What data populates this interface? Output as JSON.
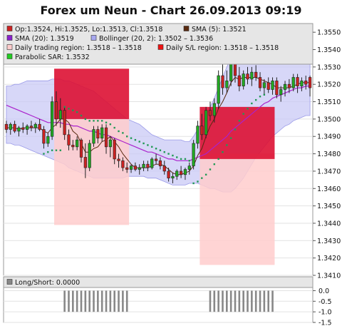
{
  "chart_data": [
    {
      "type": "candlestick",
      "title": "Forex um Neun - Chart 26.09.2013 09:19",
      "colors": {
        "up": "#22aa22",
        "down": "#cc2222",
        "sma5": "#5a2a10",
        "sma20": "#aa22cc",
        "bollinger_fill": "#c9c9f5",
        "bollinger_line": "#9a9ae8",
        "trading_region": "#ffcccc",
        "sl_region": "#dd1133",
        "parabolic_sar": "#229955",
        "plot_bg": "#ffffff",
        "legend_bg": "#e6e6e6"
      },
      "legend": [
        {
          "label": "Op:1.3524, Hi:1.3525, Lo:1.3513, Cl:1.3518",
          "color": "#cc2222"
        },
        {
          "label": "SMA (5): 1.3521",
          "color": "#5a2a10"
        },
        {
          "label": "SMA (20): 1.3519",
          "color": "#8a22cc"
        },
        {
          "label": "Bollinger (20, 2): 1.3502 – 1.3536",
          "color": "#a8a8f0"
        },
        {
          "label": "Daily trading region: 1.3518 – 1.3518",
          "color": "#ffcccc"
        },
        {
          "label": "Daily S/L region: 1.3518 – 1.3518",
          "color": "#ee1111"
        },
        {
          "label": "Parabolic SAR: 1.3532",
          "color": "#22cc22"
        }
      ],
      "y_ticks": [
        "1.3550",
        "1.3540",
        "1.3530",
        "1.3520",
        "1.3510",
        "1.3500",
        "1.3490",
        "1.3480",
        "1.3470",
        "1.3460",
        "1.3450",
        "1.3440",
        "1.3430",
        "1.3420",
        "1.3410"
      ],
      "ylim": [
        1.341,
        1.3555
      ],
      "n_bars": 74,
      "candles_ohlc": [
        [
          1.3497,
          1.3499,
          1.3492,
          1.3494
        ],
        [
          1.3494,
          1.3498,
          1.3491,
          1.3497
        ],
        [
          1.3497,
          1.3499,
          1.3492,
          1.3493
        ],
        [
          1.3493,
          1.3496,
          1.349,
          1.3495
        ],
        [
          1.3495,
          1.3498,
          1.3492,
          1.3494
        ],
        [
          1.3494,
          1.3497,
          1.3491,
          1.3496
        ],
        [
          1.3496,
          1.3499,
          1.3493,
          1.3495
        ],
        [
          1.3495,
          1.3498,
          1.3492,
          1.3497
        ],
        [
          1.3497,
          1.35,
          1.3493,
          1.3494
        ],
        [
          1.3494,
          1.3496,
          1.3483,
          1.3486
        ],
        [
          1.3486,
          1.3492,
          1.3484,
          1.349
        ],
        [
          1.349,
          1.3513,
          1.3488,
          1.351
        ],
        [
          1.351,
          1.3516,
          1.3496,
          1.35
        ],
        [
          1.35,
          1.3512,
          1.3495,
          1.3505
        ],
        [
          1.3505,
          1.3507,
          1.3488,
          1.3491
        ],
        [
          1.3491,
          1.3494,
          1.3482,
          1.3485
        ],
        [
          1.3485,
          1.3488,
          1.3482,
          1.3484
        ],
        [
          1.3484,
          1.349,
          1.3482,
          1.3488
        ],
        [
          1.3488,
          1.3489,
          1.3475,
          1.3478
        ],
        [
          1.3478,
          1.3486,
          1.3466,
          1.3472
        ],
        [
          1.3472,
          1.3488,
          1.347,
          1.3486
        ],
        [
          1.3486,
          1.3496,
          1.3484,
          1.3494
        ],
        [
          1.3494,
          1.3496,
          1.3486,
          1.3489
        ],
        [
          1.3489,
          1.3497,
          1.3487,
          1.3495
        ],
        [
          1.3495,
          1.3497,
          1.348,
          1.3484
        ],
        [
          1.3484,
          1.349,
          1.3478,
          1.3488
        ],
        [
          1.3488,
          1.3489,
          1.3474,
          1.3477
        ],
        [
          1.3477,
          1.348,
          1.3472,
          1.3476
        ],
        [
          1.3476,
          1.3478,
          1.347,
          1.3472
        ],
        [
          1.3472,
          1.3475,
          1.3469,
          1.3471
        ],
        [
          1.3471,
          1.3474,
          1.3469,
          1.3473
        ],
        [
          1.3473,
          1.3475,
          1.347,
          1.3471
        ],
        [
          1.3471,
          1.3474,
          1.3468,
          1.3472
        ],
        [
          1.3472,
          1.3476,
          1.347,
          1.3474
        ],
        [
          1.3474,
          1.3476,
          1.347,
          1.3472
        ],
        [
          1.3472,
          1.3478,
          1.3471,
          1.3477
        ],
        [
          1.3477,
          1.348,
          1.3474,
          1.3476
        ],
        [
          1.3476,
          1.3478,
          1.3471,
          1.3473
        ],
        [
          1.3473,
          1.3476,
          1.3468,
          1.347
        ],
        [
          1.347,
          1.3472,
          1.3464,
          1.3466
        ],
        [
          1.3466,
          1.3469,
          1.3463,
          1.3467
        ],
        [
          1.3467,
          1.3471,
          1.3465,
          1.347
        ],
        [
          1.347,
          1.3473,
          1.3466,
          1.3468
        ],
        [
          1.3468,
          1.3472,
          1.3465,
          1.3471
        ],
        [
          1.3471,
          1.3475,
          1.3468,
          1.3473
        ],
        [
          1.3473,
          1.3488,
          1.3471,
          1.3486
        ],
        [
          1.3486,
          1.3499,
          1.3483,
          1.3496
        ],
        [
          1.3496,
          1.3503,
          1.3488,
          1.3491
        ],
        [
          1.3491,
          1.3507,
          1.3489,
          1.3505
        ],
        [
          1.3505,
          1.351,
          1.3499,
          1.3502
        ],
        [
          1.3502,
          1.3512,
          1.3498,
          1.3509
        ],
        [
          1.3509,
          1.3528,
          1.3506,
          1.3525
        ],
        [
          1.3525,
          1.3532,
          1.3514,
          1.3518
        ],
        [
          1.3518,
          1.3528,
          1.3515,
          1.3522
        ],
        [
          1.3522,
          1.3537,
          1.3519,
          1.3533
        ],
        [
          1.3533,
          1.3535,
          1.3521,
          1.3525
        ],
        [
          1.3525,
          1.353,
          1.3516,
          1.3519
        ],
        [
          1.3519,
          1.3528,
          1.3517,
          1.3526
        ],
        [
          1.3526,
          1.353,
          1.352,
          1.3523
        ],
        [
          1.3523,
          1.353,
          1.3519,
          1.3527
        ],
        [
          1.3527,
          1.3531,
          1.3522,
          1.3524
        ],
        [
          1.3524,
          1.3527,
          1.3516,
          1.3518
        ],
        [
          1.3518,
          1.3523,
          1.3514,
          1.3521
        ],
        [
          1.3521,
          1.3524,
          1.3515,
          1.3517
        ],
        [
          1.3517,
          1.3524,
          1.3514,
          1.3522
        ],
        [
          1.3522,
          1.3524,
          1.3512,
          1.3514
        ],
        [
          1.3514,
          1.3519,
          1.351,
          1.3517
        ],
        [
          1.3517,
          1.3522,
          1.3513,
          1.352
        ],
        [
          1.352,
          1.3523,
          1.3515,
          1.3518
        ],
        [
          1.3518,
          1.3526,
          1.3516,
          1.3524
        ],
        [
          1.3524,
          1.3526,
          1.3515,
          1.3519
        ],
        [
          1.3519,
          1.3524,
          1.3516,
          1.3522
        ],
        [
          1.3522,
          1.3525,
          1.3517,
          1.352
        ],
        [
          1.3524,
          1.3525,
          1.3513,
          1.3518
        ]
      ],
      "sma5": [
        1.3495,
        1.3495,
        1.3495,
        1.3494,
        1.3495,
        1.3495,
        1.3495,
        1.3495,
        1.3495,
        1.3493,
        1.3492,
        1.3495,
        1.3497,
        1.35,
        1.35,
        1.3498,
        1.3493,
        1.3491,
        1.3486,
        1.3481,
        1.3481,
        1.3483,
        1.3484,
        1.3487,
        1.3488,
        1.349,
        1.3487,
        1.3484,
        1.348,
        1.3477,
        1.3474,
        1.3472,
        1.3472,
        1.3472,
        1.3472,
        1.3473,
        1.3474,
        1.3474,
        1.3473,
        1.3471,
        1.3469,
        1.3468,
        1.3468,
        1.3469,
        1.347,
        1.3473,
        1.3479,
        1.3483,
        1.349,
        1.3496,
        1.35,
        1.3506,
        1.351,
        1.3515,
        1.3521,
        1.3524,
        1.3523,
        1.3524,
        1.3524,
        1.3524,
        1.3524,
        1.3523,
        1.3522,
        1.3521,
        1.352,
        1.3518,
        1.3518,
        1.3518,
        1.3518,
        1.3519,
        1.352,
        1.3521,
        1.3521,
        1.3521
      ],
      "sma20": [
        1.3508,
        1.3507,
        1.3506,
        1.3505,
        1.3504,
        1.3503,
        1.3502,
        1.3501,
        1.35,
        1.3499,
        1.3498,
        1.3498,
        1.3498,
        1.3498,
        1.3497,
        1.3497,
        1.3496,
        1.3496,
        1.3495,
        1.3494,
        1.3493,
        1.3493,
        1.3492,
        1.3491,
        1.3491,
        1.349,
        1.3489,
        1.3488,
        1.3487,
        1.3486,
        1.3485,
        1.3484,
        1.3483,
        1.3482,
        1.3481,
        1.3481,
        1.348,
        1.3479,
        1.3478,
        1.3477,
        1.3477,
        1.3476,
        1.3476,
        1.3476,
        1.3476,
        1.3477,
        1.3478,
        1.3479,
        1.348,
        1.3482,
        1.3484,
        1.3486,
        1.3488,
        1.349,
        1.3493,
        1.3495,
        1.3497,
        1.3499,
        1.3501,
        1.3503,
        1.3505,
        1.3507,
        1.3509,
        1.351,
        1.3512,
        1.3513,
        1.3514,
        1.3515,
        1.3516,
        1.3517,
        1.3518,
        1.3518,
        1.3519,
        1.3519
      ],
      "bollinger_upper": [
        1.3519,
        1.3519,
        1.352,
        1.352,
        1.3521,
        1.3522,
        1.3522,
        1.3522,
        1.3522,
        1.3522,
        1.3522,
        1.3523,
        1.3523,
        1.3523,
        1.3522,
        1.3522,
        1.3521,
        1.352,
        1.3519,
        1.3518,
        1.3517,
        1.3516,
        1.3514,
        1.3512,
        1.351,
        1.3508,
        1.3506,
        1.3504,
        1.3502,
        1.35,
        1.3499,
        1.3498,
        1.3497,
        1.3495,
        1.3493,
        1.3491,
        1.349,
        1.3489,
        1.3488,
        1.3488,
        1.3488,
        1.3488,
        1.3488,
        1.3487,
        1.3487,
        1.349,
        1.3494,
        1.3498,
        1.3502,
        1.3507,
        1.3512,
        1.3518,
        1.3524,
        1.353,
        1.3535,
        1.3538,
        1.354,
        1.3541,
        1.3542,
        1.3542,
        1.3542,
        1.3542,
        1.3541,
        1.3541,
        1.3541,
        1.354,
        1.354,
        1.3539,
        1.3538,
        1.3537,
        1.3537,
        1.3536,
        1.3536,
        1.3536
      ],
      "bollinger_lower": [
        1.3486,
        1.3486,
        1.3485,
        1.3485,
        1.3484,
        1.3483,
        1.3482,
        1.3481,
        1.348,
        1.3479,
        1.3478,
        1.3477,
        1.3476,
        1.3475,
        1.3474,
        1.3472,
        1.3471,
        1.347,
        1.3469,
        1.3468,
        1.3467,
        1.3466,
        1.3466,
        1.3466,
        1.3466,
        1.3466,
        1.3466,
        1.3466,
        1.3466,
        1.3467,
        1.3467,
        1.3467,
        1.3467,
        1.3467,
        1.3466,
        1.3466,
        1.3466,
        1.3465,
        1.3464,
        1.3463,
        1.3462,
        1.3462,
        1.3462,
        1.3462,
        1.3463,
        1.3463,
        1.3463,
        1.3462,
        1.3461,
        1.346,
        1.346,
        1.3459,
        1.3458,
        1.3458,
        1.3458,
        1.346,
        1.3463,
        1.3466,
        1.347,
        1.3474,
        1.3478,
        1.3481,
        1.3484,
        1.3487,
        1.349,
        1.3492,
        1.3494,
        1.3496,
        1.3497,
        1.3499,
        1.35,
        1.3501,
        1.3502,
        1.3502
      ],
      "parabolic_sar": [
        {
          "i": 9,
          "v": 1.348
        },
        {
          "i": 10,
          "v": 1.3481
        },
        {
          "i": 11,
          "v": 1.3482
        },
        {
          "i": 12,
          "v": 1.3482
        },
        {
          "i": 13,
          "v": 1.3482
        },
        {
          "i": 14,
          "v": 1.3507
        },
        {
          "i": 15,
          "v": 1.3506
        },
        {
          "i": 16,
          "v": 1.3505
        },
        {
          "i": 17,
          "v": 1.3504
        },
        {
          "i": 18,
          "v": 1.3502
        },
        {
          "i": 19,
          "v": 1.35
        },
        {
          "i": 20,
          "v": 1.3499
        },
        {
          "i": 21,
          "v": 1.3499
        },
        {
          "i": 22,
          "v": 1.3499
        },
        {
          "i": 23,
          "v": 1.3499
        },
        {
          "i": 24,
          "v": 1.3498
        },
        {
          "i": 25,
          "v": 1.3497
        },
        {
          "i": 26,
          "v": 1.3495
        },
        {
          "i": 27,
          "v": 1.3493
        },
        {
          "i": 28,
          "v": 1.3492
        },
        {
          "i": 29,
          "v": 1.349
        },
        {
          "i": 30,
          "v": 1.3489
        },
        {
          "i": 31,
          "v": 1.3488
        },
        {
          "i": 32,
          "v": 1.3487
        },
        {
          "i": 33,
          "v": 1.3486
        },
        {
          "i": 34,
          "v": 1.3485
        },
        {
          "i": 35,
          "v": 1.3484
        },
        {
          "i": 36,
          "v": 1.3483
        },
        {
          "i": 37,
          "v": 1.3482
        },
        {
          "i": 38,
          "v": 1.3481
        },
        {
          "i": 39,
          "v": 1.348
        },
        {
          "i": 40,
          "v": 1.3479
        },
        {
          "i": 41,
          "v": 1.3478
        },
        {
          "i": 42,
          "v": 1.3477
        },
        {
          "i": 43,
          "v": 1.3477
        },
        {
          "i": 44,
          "v": 1.3476
        },
        {
          "i": 45,
          "v": 1.3463
        },
        {
          "i": 46,
          "v": 1.3464
        },
        {
          "i": 47,
          "v": 1.3466
        },
        {
          "i": 48,
          "v": 1.3468
        },
        {
          "i": 49,
          "v": 1.3471
        },
        {
          "i": 50,
          "v": 1.3474
        },
        {
          "i": 51,
          "v": 1.3477
        },
        {
          "i": 52,
          "v": 1.3481
        },
        {
          "i": 53,
          "v": 1.3485
        },
        {
          "i": 54,
          "v": 1.3489
        },
        {
          "i": 55,
          "v": 1.3494
        },
        {
          "i": 56,
          "v": 1.3499
        },
        {
          "i": 57,
          "v": 1.3503
        },
        {
          "i": 58,
          "v": 1.3506
        },
        {
          "i": 59,
          "v": 1.3509
        },
        {
          "i": 60,
          "v": 1.3511
        },
        {
          "i": 61,
          "v": 1.3513
        },
        {
          "i": 62,
          "v": 1.3514
        },
        {
          "i": 56,
          "v": 1.3537
        },
        {
          "i": 57,
          "v": 1.3537
        },
        {
          "i": 58,
          "v": 1.3536
        },
        {
          "i": 59,
          "v": 1.3536
        },
        {
          "i": 60,
          "v": 1.3535
        },
        {
          "i": 61,
          "v": 1.3535
        },
        {
          "i": 62,
          "v": 1.3534
        },
        {
          "i": 63,
          "v": 1.3533
        },
        {
          "i": 64,
          "v": 1.3533
        },
        {
          "i": 65,
          "v": 1.3532
        },
        {
          "i": 66,
          "v": 1.3532
        },
        {
          "i": 67,
          "v": 1.3532
        },
        {
          "i": 68,
          "v": 1.3532
        },
        {
          "i": 69,
          "v": 1.3532
        },
        {
          "i": 70,
          "v": 1.3532
        },
        {
          "i": 71,
          "v": 1.3532
        }
      ],
      "trading_regions": [
        {
          "from_bar": 12,
          "to_bar": 29,
          "low": 1.3439,
          "high": 1.35
        },
        {
          "from_bar": 47,
          "to_bar": 64,
          "low": 1.3416,
          "high": 1.348
        }
      ],
      "sl_regions": [
        {
          "from_bar": 12,
          "to_bar": 29,
          "low": 1.35,
          "high": 1.3529
        },
        {
          "from_bar": 47,
          "to_bar": 64,
          "low": 1.3477,
          "high": 1.3507
        }
      ]
    },
    {
      "type": "bar",
      "legend": [
        {
          "label": "Long/Short: 0.0000",
          "color": "#888888"
        }
      ],
      "y_ticks": [
        "0.0",
        "-0.5",
        "-1.0",
        "-1.5"
      ],
      "ylim": [
        -1.5,
        0.15
      ],
      "bar_color": "#888888",
      "short_bar_groups": [
        {
          "from_bar": 14,
          "to_bar": 29,
          "value": -1.0
        },
        {
          "from_bar": 49,
          "to_bar": 64,
          "value": -1.0
        }
      ]
    }
  ]
}
